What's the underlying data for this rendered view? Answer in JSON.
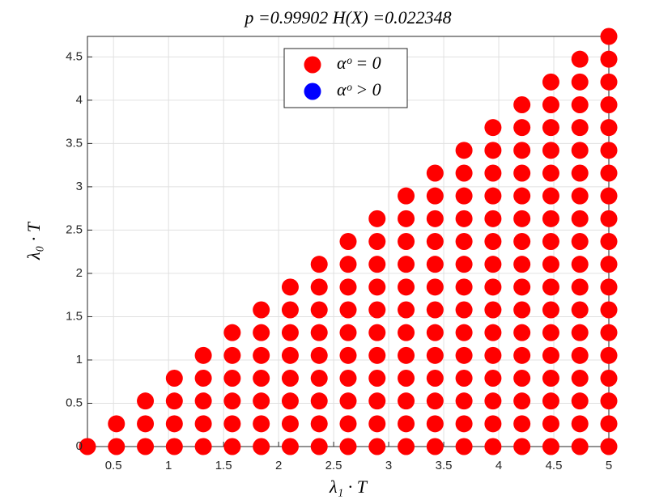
{
  "chart_data": {
    "type": "scatter",
    "title": "p =0.99902    H(X) =0.022348",
    "x_label": "λ₁ · T",
    "y_label": "λ₀ · T",
    "xlim": [
      0.2632,
      5
    ],
    "ylim": [
      0,
      4.7368
    ],
    "xticks": [
      0.5,
      1,
      1.5,
      2,
      2.5,
      3,
      3.5,
      4,
      4.5,
      5
    ],
    "yticks": [
      0,
      0.5,
      1,
      1.5,
      2,
      2.5,
      3,
      3.5,
      4,
      4.5
    ],
    "grid": true,
    "legend": "top",
    "series": [
      {
        "name": "αᵒ = 0",
        "color": "#ff0000",
        "x": [
          0.2632,
          0.5263,
          0.5263,
          0.7895,
          0.7895,
          0.7895,
          1.0526,
          1.0526,
          1.0526,
          1.0526,
          1.3158,
          1.3158,
          1.3158,
          1.3158,
          1.3158,
          1.5789,
          1.5789,
          1.5789,
          1.5789,
          1.5789,
          1.5789,
          1.8421,
          1.8421,
          1.8421,
          1.8421,
          1.8421,
          1.8421,
          1.8421,
          2.1053,
          2.1053,
          2.1053,
          2.1053,
          2.1053,
          2.1053,
          2.1053,
          2.1053,
          2.3684,
          2.3684,
          2.3684,
          2.3684,
          2.3684,
          2.3684,
          2.3684,
          2.3684,
          2.3684,
          2.6316,
          2.6316,
          2.6316,
          2.6316,
          2.6316,
          2.6316,
          2.6316,
          2.6316,
          2.6316,
          2.6316,
          2.8947,
          2.8947,
          2.8947,
          2.8947,
          2.8947,
          2.8947,
          2.8947,
          2.8947,
          2.8947,
          2.8947,
          2.8947,
          3.1579,
          3.1579,
          3.1579,
          3.1579,
          3.1579,
          3.1579,
          3.1579,
          3.1579,
          3.1579,
          3.1579,
          3.1579,
          3.1579,
          3.4211,
          3.4211,
          3.4211,
          3.4211,
          3.4211,
          3.4211,
          3.4211,
          3.4211,
          3.4211,
          3.4211,
          3.4211,
          3.4211,
          3.4211,
          3.6842,
          3.6842,
          3.6842,
          3.6842,
          3.6842,
          3.6842,
          3.6842,
          3.6842,
          3.6842,
          3.6842,
          3.6842,
          3.6842,
          3.6842,
          3.6842,
          3.9474,
          3.9474,
          3.9474,
          3.9474,
          3.9474,
          3.9474,
          3.9474,
          3.9474,
          3.9474,
          3.9474,
          3.9474,
          3.9474,
          3.9474,
          3.9474,
          3.9474,
          4.2105,
          4.2105,
          4.2105,
          4.2105,
          4.2105,
          4.2105,
          4.2105,
          4.2105,
          4.2105,
          4.2105,
          4.2105,
          4.2105,
          4.2105,
          4.2105,
          4.2105,
          4.2105,
          4.4737,
          4.4737,
          4.4737,
          4.4737,
          4.4737,
          4.4737,
          4.4737,
          4.4737,
          4.4737,
          4.4737,
          4.4737,
          4.4737,
          4.4737,
          4.4737,
          4.4737,
          4.4737,
          4.4737,
          4.7368,
          4.7368,
          4.7368,
          4.7368,
          4.7368,
          4.7368,
          4.7368,
          4.7368,
          4.7368,
          4.7368,
          4.7368,
          4.7368,
          4.7368,
          4.7368,
          4.7368,
          4.7368,
          4.7368,
          4.7368,
          5,
          5,
          5,
          5,
          5,
          5,
          5,
          5,
          5,
          5,
          5,
          5,
          5,
          5,
          5,
          5,
          5,
          5,
          5
        ],
        "values": [
          0,
          0,
          0.2632,
          0,
          0.2632,
          0.5263,
          0,
          0.2632,
          0.5263,
          0.7895,
          0,
          0.2632,
          0.5263,
          0.7895,
          1.0526,
          0,
          0.2632,
          0.5263,
          0.7895,
          1.0526,
          1.3158,
          0,
          0.2632,
          0.5263,
          0.7895,
          1.0526,
          1.3158,
          1.5789,
          0,
          0.2632,
          0.5263,
          0.7895,
          1.0526,
          1.3158,
          1.5789,
          1.8421,
          0,
          0.2632,
          0.5263,
          0.7895,
          1.0526,
          1.3158,
          1.5789,
          1.8421,
          2.1053,
          0,
          0.2632,
          0.5263,
          0.7895,
          1.0526,
          1.3158,
          1.5789,
          1.8421,
          2.1053,
          2.3684,
          0,
          0.2632,
          0.5263,
          0.7895,
          1.0526,
          1.3158,
          1.5789,
          1.8421,
          2.1053,
          2.3684,
          2.6316,
          0,
          0.2632,
          0.5263,
          0.7895,
          1.0526,
          1.3158,
          1.5789,
          1.8421,
          2.1053,
          2.3684,
          2.6316,
          2.8947,
          0,
          0.2632,
          0.5263,
          0.7895,
          1.0526,
          1.3158,
          1.5789,
          1.8421,
          2.1053,
          2.3684,
          2.6316,
          2.8947,
          3.1579,
          0,
          0.2632,
          0.5263,
          0.7895,
          1.0526,
          1.3158,
          1.5789,
          1.8421,
          2.1053,
          2.3684,
          2.6316,
          2.8947,
          3.1579,
          3.4211,
          0,
          0.2632,
          0.5263,
          0.7895,
          1.0526,
          1.3158,
          1.5789,
          1.8421,
          2.1053,
          2.3684,
          2.6316,
          2.8947,
          3.1579,
          3.4211,
          3.6842,
          0,
          0.2632,
          0.5263,
          0.7895,
          1.0526,
          1.3158,
          1.5789,
          1.8421,
          2.1053,
          2.3684,
          2.6316,
          2.8947,
          3.1579,
          3.4211,
          3.6842,
          3.9474,
          0,
          0.2632,
          0.5263,
          0.7895,
          1.0526,
          1.3158,
          1.5789,
          1.8421,
          2.1053,
          2.3684,
          2.6316,
          2.8947,
          3.1579,
          3.4211,
          3.6842,
          3.9474,
          4.2105,
          0,
          0.2632,
          0.5263,
          0.7895,
          1.0526,
          1.3158,
          1.5789,
          1.8421,
          2.1053,
          2.3684,
          2.6316,
          2.8947,
          3.1579,
          3.4211,
          3.6842,
          3.9474,
          4.2105,
          4.4737,
          0,
          0.2632,
          0.5263,
          0.7895,
          1.0526,
          1.3158,
          1.5789,
          1.8421,
          2.1053,
          2.3684,
          2.6316,
          2.8947,
          3.1579,
          3.4211,
          3.6842,
          3.9474,
          4.2105,
          4.4737,
          4.7368
        ]
      },
      {
        "name": "αᵒ > 0",
        "color": "#0000ff",
        "x": [],
        "values": []
      }
    ]
  }
}
